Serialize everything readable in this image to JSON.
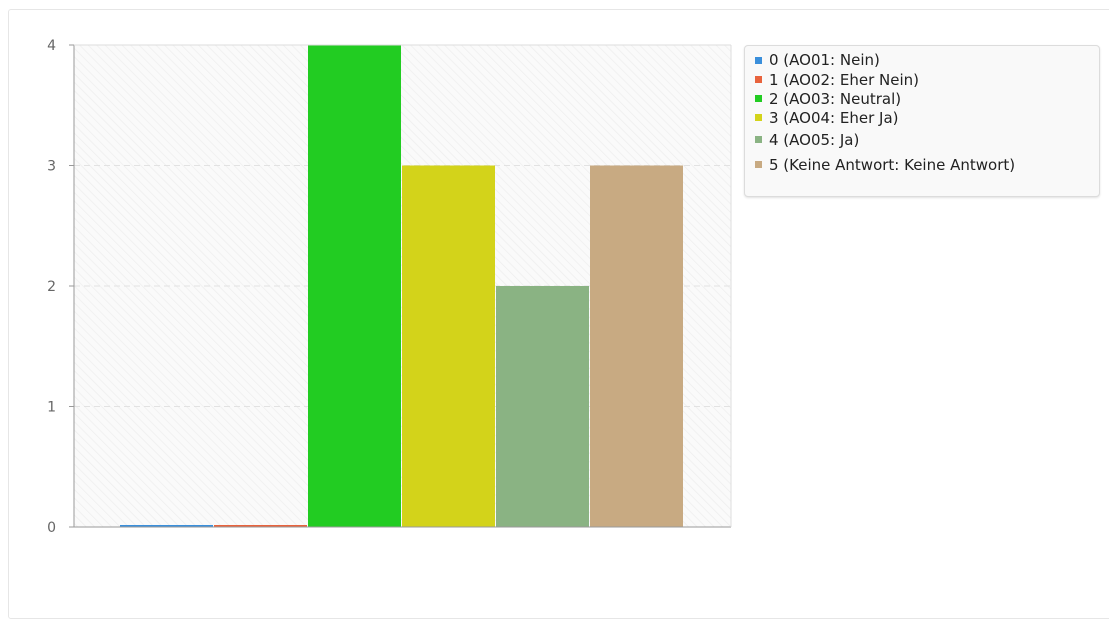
{
  "chart_data": {
    "type": "bar",
    "categories": [
      "0 (AO01: Nein)",
      "1 (AO02: Eher Nein)",
      "2 (AO03: Neutral)",
      "3 (AO04: Eher Ja)",
      "4 (AO05: Ja)",
      "5 (Keine Antwort: Keine Antwort)"
    ],
    "values": [
      0,
      0,
      4,
      3,
      2,
      3
    ],
    "colors": [
      "#3a8fdb",
      "#e8633d",
      "#22cc22",
      "#d3d31a",
      "#8ab383",
      "#c8aa82"
    ],
    "ylim": [
      0,
      4
    ],
    "yticks": [
      "0",
      "1",
      "2",
      "3",
      "4"
    ],
    "grid": true,
    "legend_position": "top-right",
    "title": "",
    "xlabel": "",
    "ylabel": ""
  }
}
